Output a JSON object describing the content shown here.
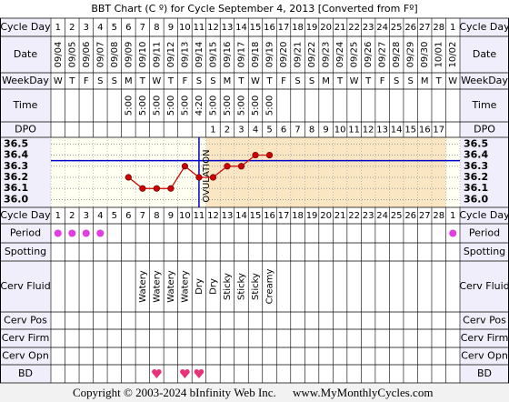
{
  "chart_data": {
    "type": "bbt",
    "title": "BBT Chart (C º) for Cycle September 4, 2013  [Converted from Fº]",
    "labels": {
      "cycle_day": "Cycle Day",
      "date": "Date",
      "weekday": "WeekDay",
      "time": "Time",
      "dpo": "DPO",
      "period": "Period",
      "spotting": "Spotting",
      "cervical_fluid": "Cerv Fluid",
      "cervical_position": "Cerv Pos",
      "cervical_firmness": "Cerv Firm",
      "cervical_opening": "Cerv Opn",
      "bd": "BD"
    },
    "cycle_days": [
      1,
      2,
      3,
      4,
      5,
      6,
      7,
      8,
      9,
      10,
      11,
      12,
      13,
      14,
      15,
      16,
      17,
      18,
      19,
      20,
      21,
      22,
      23,
      24,
      25,
      26,
      27,
      28,
      1
    ],
    "dates": [
      "09/04",
      "09/05",
      "09/06",
      "09/07",
      "09/08",
      "09/09",
      "09/10",
      "09/11",
      "09/12",
      "09/13",
      "09/14",
      "09/15",
      "09/16",
      "09/17",
      "09/18",
      "09/19",
      "09/20",
      "09/21",
      "09/22",
      "09/23",
      "09/24",
      "09/25",
      "09/26",
      "09/27",
      "09/28",
      "09/29",
      "09/30",
      "10/01",
      "10/02"
    ],
    "weekdays": [
      "W",
      "T",
      "F",
      "S",
      "S",
      "M",
      "T",
      "W",
      "T",
      "F",
      "S",
      "S",
      "M",
      "T",
      "W",
      "T",
      "F",
      "S",
      "S",
      "M",
      "T",
      "W",
      "T",
      "F",
      "S",
      "S",
      "M",
      "T",
      "W"
    ],
    "times": [
      null,
      null,
      null,
      null,
      null,
      "5:00",
      "5:00",
      "5:00",
      "5:00",
      "5:00",
      "4:20",
      "5:00",
      "5:00",
      "5:00",
      "5:00",
      "5:00",
      null,
      null,
      null,
      null,
      null,
      null,
      null,
      null,
      null,
      null,
      null,
      null,
      null
    ],
    "dpo": [
      null,
      null,
      null,
      null,
      null,
      null,
      null,
      null,
      null,
      null,
      null,
      1,
      2,
      3,
      4,
      5,
      6,
      7,
      8,
      9,
      10,
      11,
      12,
      13,
      14,
      15,
      16,
      17,
      null
    ],
    "series": [
      {
        "color": "#cc0000",
        "values": [
          null,
          null,
          null,
          null,
          null,
          36.2,
          36.1,
          36.1,
          36.1,
          36.3,
          36.2,
          36.2,
          36.3,
          36.3,
          36.4,
          36.4,
          null,
          null,
          null,
          null,
          null,
          null,
          null,
          null,
          null,
          null,
          null,
          null,
          null
        ]
      }
    ],
    "ylim": [
      35.93,
      36.56
    ],
    "yticks": [
      {
        "value": 36,
        "label": "36.0"
      },
      36.1,
      36.2,
      36.3,
      36.4,
      36.5
    ],
    "coverline": {
      "value": 36.35,
      "color": "#0000cc"
    },
    "ovulation": {
      "label": "OVULATION",
      "cycle_day": 11,
      "color": "#0000cc"
    },
    "period": [
      true,
      true,
      true,
      true,
      false,
      false,
      false,
      false,
      false,
      false,
      false,
      false,
      false,
      false,
      false,
      false,
      false,
      false,
      false,
      false,
      false,
      false,
      false,
      false,
      false,
      false,
      false,
      false,
      true
    ],
    "period_color": "#e23de2",
    "cervical_fluid": [
      null,
      null,
      null,
      null,
      null,
      null,
      "Watery",
      "Watery",
      "Watery",
      "Watery",
      "Dry",
      "Dry",
      "Sticky",
      "Sticky",
      "Sticky",
      "Creamy",
      null,
      null,
      null,
      null,
      null,
      null,
      null,
      null,
      null,
      null,
      null,
      null,
      null
    ],
    "bd": [
      false,
      false,
      false,
      false,
      false,
      false,
      false,
      true,
      false,
      true,
      true,
      false,
      false,
      false,
      false,
      false,
      false,
      false,
      false,
      false,
      false,
      false,
      false,
      false,
      false,
      false,
      false,
      false,
      false
    ],
    "bd_color": "#e8337a",
    "copyright": "Copyright © 2003-2024 bInfinity Web Inc.",
    "website": "www.MyMonthlyCycles.com"
  }
}
